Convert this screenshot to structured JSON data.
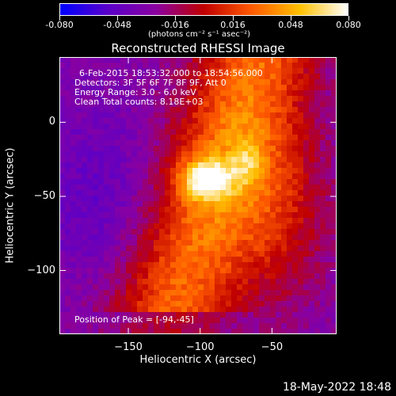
{
  "chart_data": {
    "type": "heatmap",
    "title": "Reconstructed RHESSI Image",
    "xlabel": "Heliocentric X (arcsec)",
    "ylabel": "Heliocentric Y (arcsec)",
    "xlim": [
      -198,
      -5
    ],
    "ylim": [
      -143,
      44
    ],
    "xticks": [
      -150,
      -100,
      -50
    ],
    "yticks": [
      0,
      -50,
      -100
    ],
    "colorbar": {
      "ticks": [
        "-0.080",
        "-0.048",
        "-0.016",
        "0.016",
        "0.048",
        "0.080"
      ],
      "range": [
        -0.08,
        0.08
      ],
      "unit_label": "(photons cm⁻² s⁻¹ asec⁻²)"
    },
    "annotations": [
      "6-Feb-2015 18:53:32.000 to 18:54:56.000",
      "Detectors: 3F 5F 6F 7F 8F 9F, Att 0",
      "Energy Range: 3.0 - 6.0 keV",
      "Clean     Total counts: 8.18E+03"
    ],
    "peak_label": "Position of Peak = [-94,-45]",
    "peak": [
      -94,
      -45
    ],
    "timestamp": "18-May-2022 18:48"
  },
  "colors": {
    "background": "#000000",
    "text": "#ffffff",
    "scale": [
      "#0000ff",
      "#5a00c8",
      "#8a00a0",
      "#c00000",
      "#ff5a00",
      "#ffc000",
      "#ffffff"
    ]
  }
}
